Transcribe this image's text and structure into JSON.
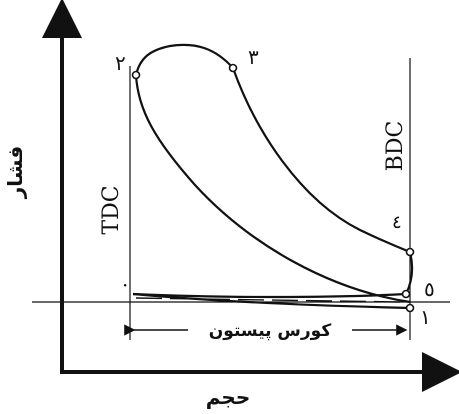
{
  "axes": {
    "x_label": "حجم",
    "y_label": "فشار"
  },
  "markers": {
    "tdc": "TDC",
    "bdc": "BDC",
    "stroke": "کورس پیستون"
  },
  "points": [
    {
      "id": "1",
      "label": "۱"
    },
    {
      "id": "2",
      "label": "۲"
    },
    {
      "id": "3",
      "label": "۳"
    },
    {
      "id": "4",
      "label": "٤"
    },
    {
      "id": "5",
      "label": "٥"
    },
    {
      "id": "0",
      "label": "·"
    }
  ]
}
